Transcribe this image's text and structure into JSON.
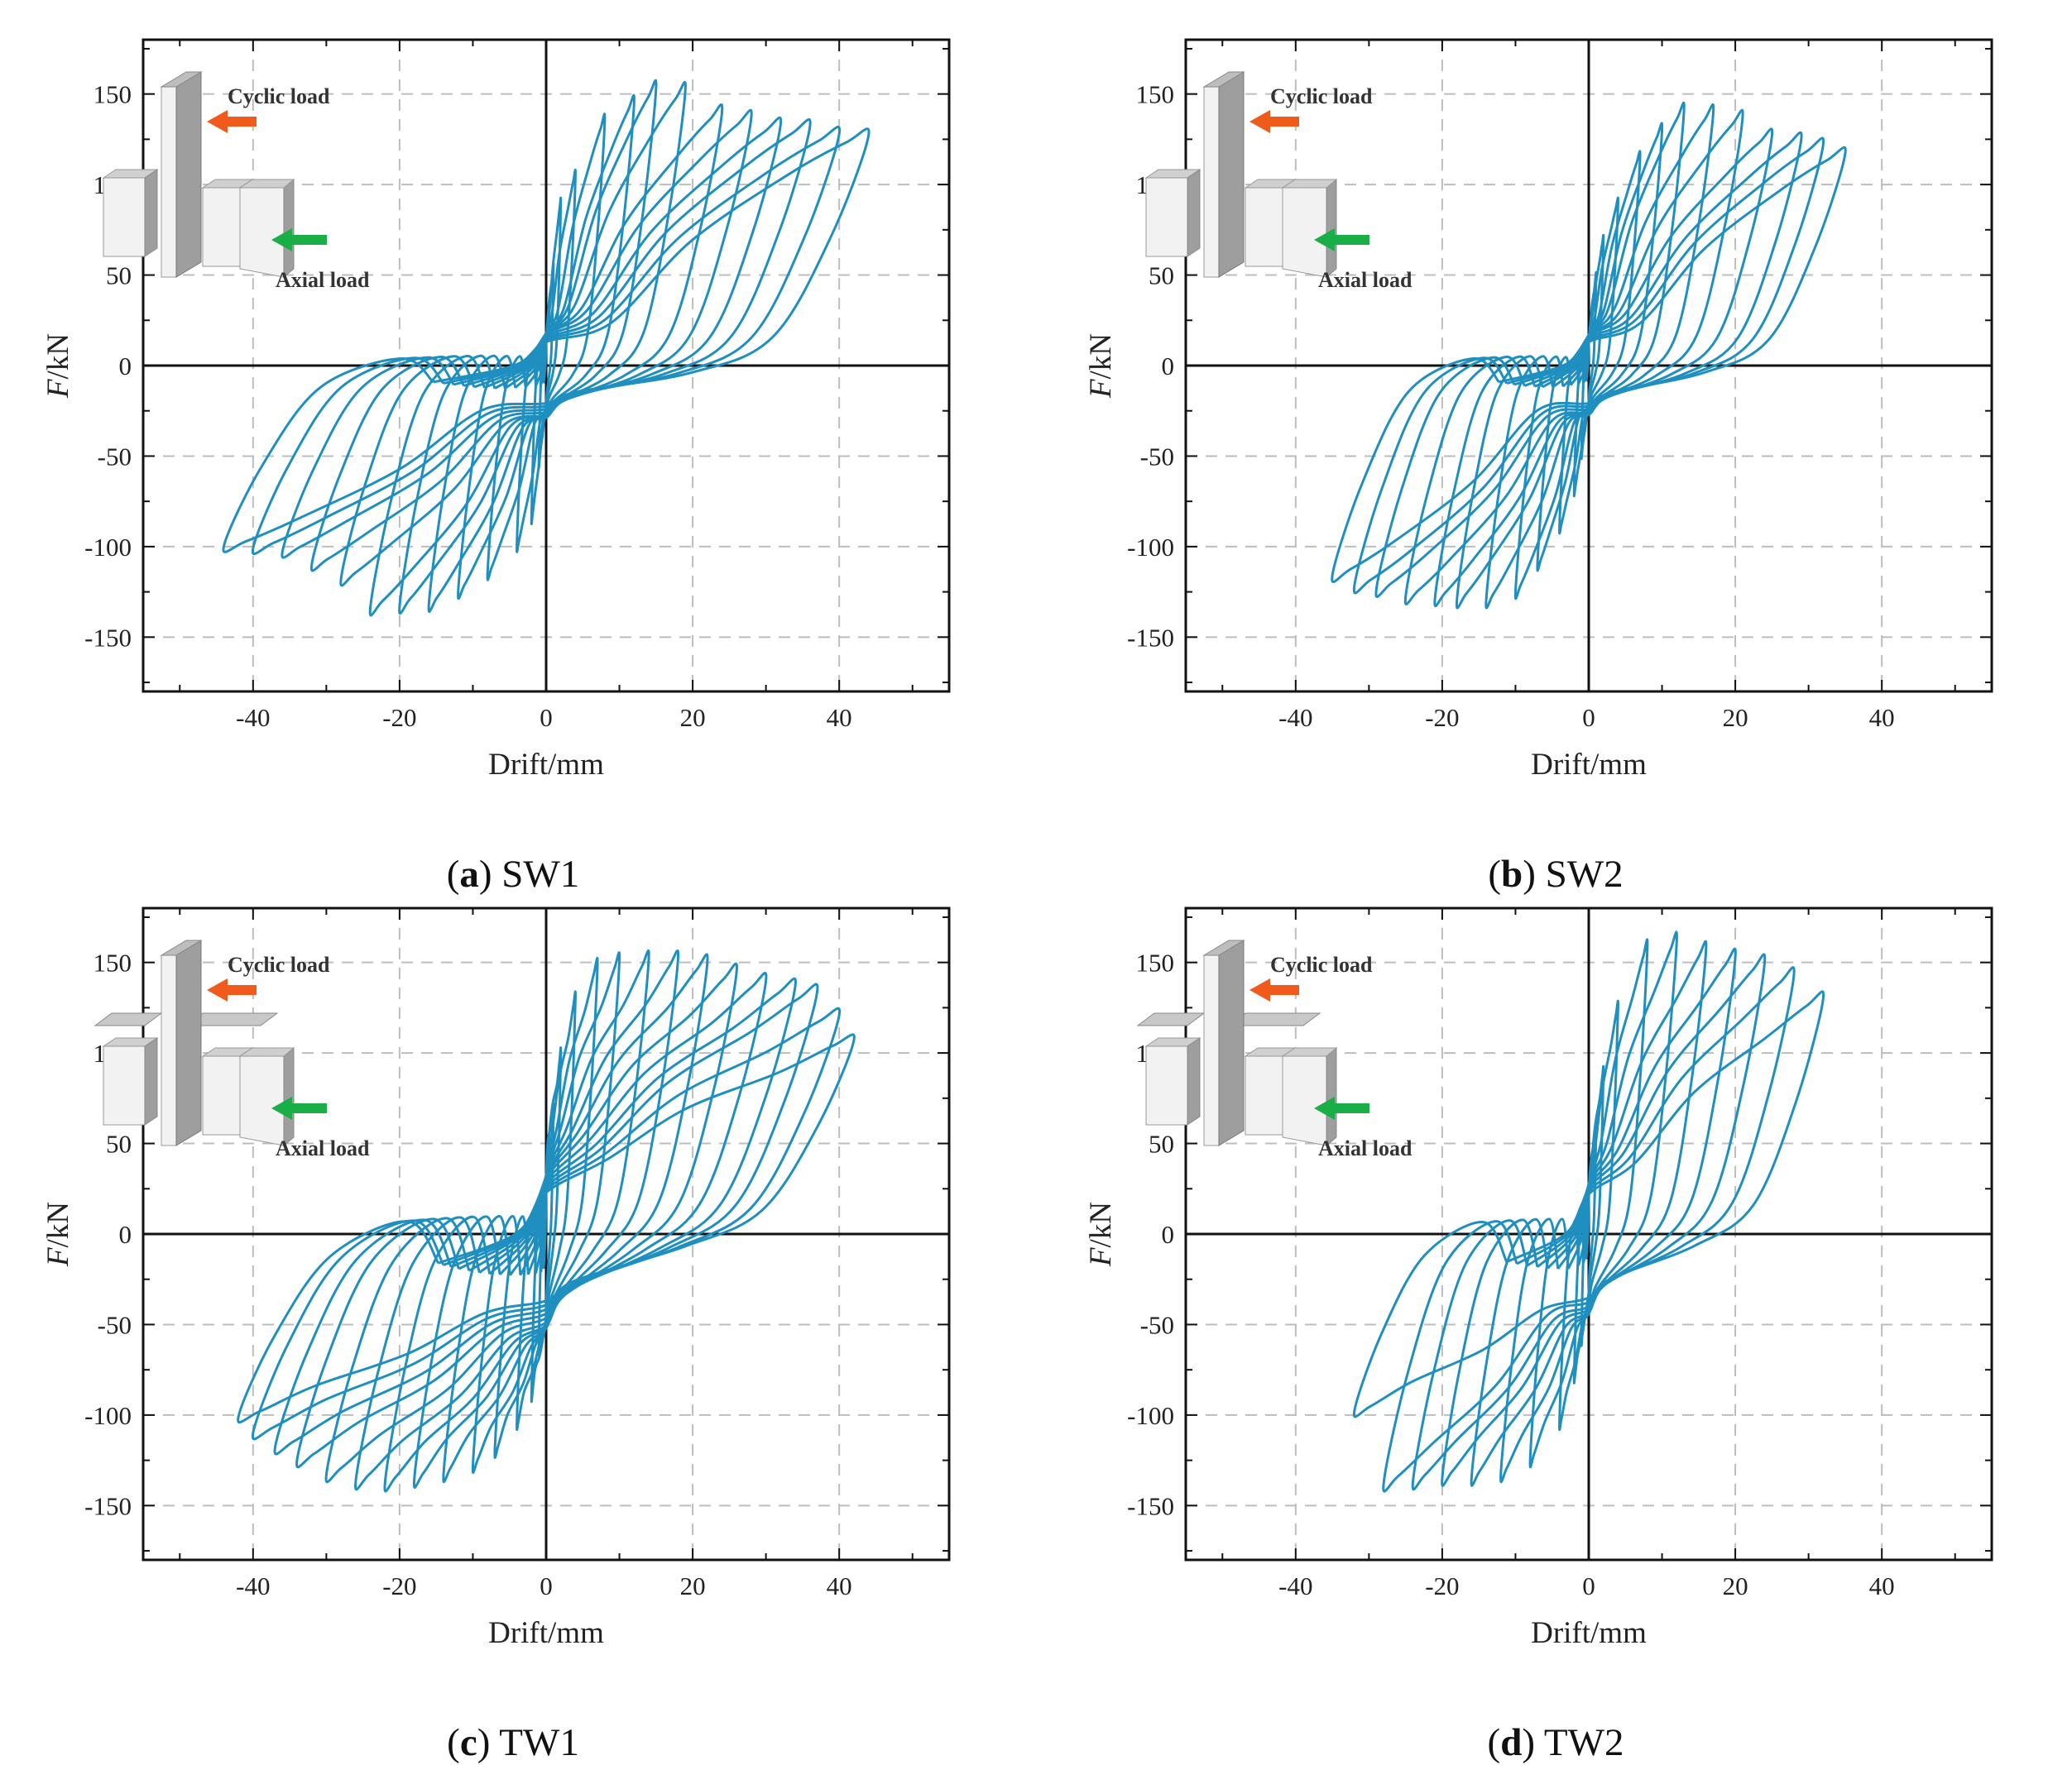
{
  "colors": {
    "curve": "#1f8fc0",
    "grid": "#bdbdbd",
    "axis": "#111111",
    "cyclic_arrow": "#f05a1a",
    "axial_arrow": "#1aae47",
    "wall_light": "#f2f2f2",
    "wall_dark": "#9e9e9e"
  },
  "chart_data": [
    {
      "type": "line",
      "panel": "a",
      "name": "SW1",
      "caption_letter": "a",
      "caption_text": "SW1",
      "title": "",
      "xlabel": "Drift/mm",
      "ylabel_italic": "F",
      "ylabel_rest": "/kN",
      "xlim": [
        -55,
        55
      ],
      "ylim": [
        -180,
        180
      ],
      "xticks": [
        "-40",
        "-20",
        "0",
        "20",
        "40"
      ],
      "xtick_values": [
        -40,
        -20,
        0,
        20,
        40
      ],
      "yticks": [
        "150",
        "100",
        "50",
        "0",
        "-50",
        "-100",
        "-150"
      ],
      "ytick_values": [
        150,
        100,
        50,
        0,
        -50,
        -100,
        -150
      ],
      "grid": true,
      "inset": {
        "cyclic": "Cyclic load",
        "axial": "Axial load",
        "variant": "single"
      },
      "series": [
        {
          "name": "hysteresis loops",
          "cycles": [
            {
              "pos": [
                1.0,
                55
              ],
              "neg": [
                -1.0,
                -55
              ],
              "pinch": 28
            },
            {
              "pos": [
                2.0,
                90
              ],
              "neg": [
                -2.0,
                -85
              ],
              "pinch": 30
            },
            {
              "pos": [
                4.0,
                105
              ],
              "neg": [
                -4.0,
                -100
              ],
              "pinch": 32
            },
            {
              "pos": [
                8.0,
                135
              ],
              "neg": [
                -8.0,
                -115
              ],
              "pinch": 34
            },
            {
              "pos": [
                12.0,
                145
              ],
              "neg": [
                -12.0,
                -125
              ],
              "pinch": 35
            },
            {
              "pos": [
                15.0,
                153
              ],
              "neg": [
                -16.0,
                -132
              ],
              "pinch": 36
            },
            {
              "pos": [
                19.0,
                152
              ],
              "neg": [
                -20.0,
                -133
              ],
              "pinch": 36
            },
            {
              "pos": [
                24.0,
                140
              ],
              "neg": [
                -24.0,
                -134
              ],
              "pinch": 35
            },
            {
              "pos": [
                28.0,
                137
              ],
              "neg": [
                -28.0,
                -118
              ],
              "pinch": 34
            },
            {
              "pos": [
                32.0,
                133
              ],
              "neg": [
                -32.0,
                -110
              ],
              "pinch": 32
            },
            {
              "pos": [
                36.0,
                132
              ],
              "neg": [
                -36.0,
                -103
              ],
              "pinch": 30
            },
            {
              "pos": [
                40.0,
                128
              ],
              "neg": [
                -40.0,
                -101
              ],
              "pinch": 28
            },
            {
              "pos": [
                44.0,
                127
              ],
              "neg": [
                -44.0,
                -100
              ],
              "pinch": 26
            }
          ]
        }
      ]
    },
    {
      "type": "line",
      "panel": "b",
      "name": "SW2",
      "caption_letter": "b",
      "caption_text": "SW2",
      "title": "",
      "xlabel": "Drift/mm",
      "ylabel_italic": "F",
      "ylabel_rest": "/kN",
      "xlim": [
        -55,
        55
      ],
      "ylim": [
        -180,
        180
      ],
      "xticks": [
        "-40",
        "-20",
        "0",
        "20",
        "40"
      ],
      "xtick_values": [
        -40,
        -20,
        0,
        20,
        40
      ],
      "yticks": [
        "150",
        "100",
        "50",
        "0",
        "-50",
        "-100",
        "-150"
      ],
      "ytick_values": [
        150,
        100,
        50,
        0,
        -50,
        -100,
        -150
      ],
      "grid": true,
      "inset": {
        "cyclic": "Cyclic load",
        "axial": "Axial load",
        "variant": "single"
      },
      "series": [
        {
          "name": "hysteresis loops",
          "cycles": [
            {
              "pos": [
                1.0,
                50
              ],
              "neg": [
                -1.0,
                -50
              ],
              "pinch": 25
            },
            {
              "pos": [
                2.0,
                70
              ],
              "neg": [
                -2.0,
                -70
              ],
              "pinch": 27
            },
            {
              "pos": [
                4.0,
                90
              ],
              "neg": [
                -4.0,
                -90
              ],
              "pinch": 29
            },
            {
              "pos": [
                7.0,
                115
              ],
              "neg": [
                -7.0,
                -110
              ],
              "pinch": 31
            },
            {
              "pos": [
                10.0,
                130
              ],
              "neg": [
                -10.0,
                -125
              ],
              "pinch": 33
            },
            {
              "pos": [
                13.0,
                141
              ],
              "neg": [
                -14.0,
                -130
              ],
              "pinch": 34
            },
            {
              "pos": [
                17.0,
                140
              ],
              "neg": [
                -18.0,
                -130
              ],
              "pinch": 34
            },
            {
              "pos": [
                21.0,
                137
              ],
              "neg": [
                -21.0,
                -129
              ],
              "pinch": 33
            },
            {
              "pos": [
                25.0,
                127
              ],
              "neg": [
                -25.0,
                -128
              ],
              "pinch": 32
            },
            {
              "pos": [
                29.0,
                125
              ],
              "neg": [
                -29.0,
                -124
              ],
              "pinch": 30
            },
            {
              "pos": [
                32.0,
                122
              ],
              "neg": [
                -32.0,
                -122
              ],
              "pinch": 28
            },
            {
              "pos": [
                35.0,
                117
              ],
              "neg": [
                -35.0,
                -116
              ],
              "pinch": 26
            }
          ]
        }
      ]
    },
    {
      "type": "line",
      "panel": "c",
      "name": "TW1",
      "caption_letter": "c",
      "caption_text": "TW1",
      "title": "",
      "xlabel": "Drift/mm",
      "ylabel_italic": "F",
      "ylabel_rest": "/kN",
      "xlim": [
        -55,
        55
      ],
      "ylim": [
        -180,
        180
      ],
      "xticks": [
        "-40",
        "-20",
        "0",
        "20",
        "40"
      ],
      "xtick_values": [
        -40,
        -20,
        0,
        20,
        40
      ],
      "yticks": [
        "150",
        "100",
        "50",
        "0",
        "-50",
        "-100",
        "-150"
      ],
      "ytick_values": [
        150,
        100,
        50,
        0,
        -50,
        -100,
        -150
      ],
      "grid": true,
      "inset": {
        "cyclic": "Cyclic load",
        "axial": "Axial load",
        "variant": "double"
      },
      "series": [
        {
          "name": "hysteresis loops",
          "cycles": [
            {
              "pos": [
                1.0,
                70
              ],
              "neg": [
                -1.0,
                -65
              ],
              "pinch": 55
            },
            {
              "pos": [
                2.0,
                100
              ],
              "neg": [
                -2.0,
                -90
              ],
              "pinch": 60
            },
            {
              "pos": [
                4.0,
                130
              ],
              "neg": [
                -4.0,
                -105
              ],
              "pinch": 62
            },
            {
              "pos": [
                7.0,
                148
              ],
              "neg": [
                -7.0,
                -120
              ],
              "pinch": 64
            },
            {
              "pos": [
                10.0,
                151
              ],
              "neg": [
                -10.0,
                -128
              ],
              "pinch": 65
            },
            {
              "pos": [
                14.0,
                152
              ],
              "neg": [
                -14.0,
                -133
              ],
              "pinch": 65
            },
            {
              "pos": [
                18.0,
                152
              ],
              "neg": [
                -18.0,
                -136
              ],
              "pinch": 64
            },
            {
              "pos": [
                22.0,
                150
              ],
              "neg": [
                -22.0,
                -138
              ],
              "pinch": 63
            },
            {
              "pos": [
                26.0,
                145
              ],
              "neg": [
                -26.0,
                -137
              ],
              "pinch": 61
            },
            {
              "pos": [
                30.0,
                140
              ],
              "neg": [
                -30.0,
                -133
              ],
              "pinch": 58
            },
            {
              "pos": [
                34.0,
                137
              ],
              "neg": [
                -34.0,
                -125
              ],
              "pinch": 55
            },
            {
              "pos": [
                37.0,
                134
              ],
              "neg": [
                -37.0,
                -118
              ],
              "pinch": 52
            },
            {
              "pos": [
                40.0,
                121
              ],
              "neg": [
                -40.0,
                -110
              ],
              "pinch": 49
            },
            {
              "pos": [
                42.0,
                107
              ],
              "neg": [
                -42.0,
                -101
              ],
              "pinch": 46
            }
          ]
        }
      ]
    },
    {
      "type": "line",
      "panel": "d",
      "name": "TW2",
      "caption_letter": "d",
      "caption_text": "TW2",
      "title": "",
      "xlabel": "Drift/mm",
      "ylabel_italic": "F",
      "ylabel_rest": "/kN",
      "xlim": [
        -55,
        55
      ],
      "ylim": [
        -180,
        180
      ],
      "xticks": [
        "-40",
        "-20",
        "0",
        "20",
        "40"
      ],
      "xtick_values": [
        -40,
        -20,
        0,
        20,
        40
      ],
      "yticks": [
        "150",
        "100",
        "50",
        "0",
        "-50",
        "-100",
        "-150"
      ],
      "ytick_values": [
        150,
        100,
        50,
        0,
        -50,
        -100,
        -150
      ],
      "grid": true,
      "inset": {
        "cyclic": "Cyclic load",
        "axial": "Axial load",
        "variant": "double"
      },
      "series": [
        {
          "name": "hysteresis loops",
          "cycles": [
            {
              "pos": [
                1.0,
                60
              ],
              "neg": [
                -1.0,
                -60
              ],
              "pinch": 40
            },
            {
              "pos": [
                2.0,
                90
              ],
              "neg": [
                -2.0,
                -80
              ],
              "pinch": 45
            },
            {
              "pos": [
                4.0,
                125
              ],
              "neg": [
                -4.0,
                -105
              ],
              "pinch": 50
            },
            {
              "pos": [
                8.0,
                158
              ],
              "neg": [
                -8.0,
                -125
              ],
              "pinch": 55
            },
            {
              "pos": [
                12.0,
                162
              ],
              "neg": [
                -12.0,
                -133
              ],
              "pinch": 55
            },
            {
              "pos": [
                16.0,
                157
              ],
              "neg": [
                -16.0,
                -135
              ],
              "pinch": 54
            },
            {
              "pos": [
                20.0,
                153
              ],
              "neg": [
                -20.0,
                -135
              ],
              "pinch": 52
            },
            {
              "pos": [
                24.0,
                150
              ],
              "neg": [
                -24.0,
                -137
              ],
              "pinch": 50
            },
            {
              "pos": [
                28.0,
                143
              ],
              "neg": [
                -28.0,
                -138
              ],
              "pinch": 47
            },
            {
              "pos": [
                32.0,
                130
              ],
              "neg": [
                -32.0,
                -98
              ],
              "pinch": 44
            }
          ]
        }
      ]
    }
  ]
}
